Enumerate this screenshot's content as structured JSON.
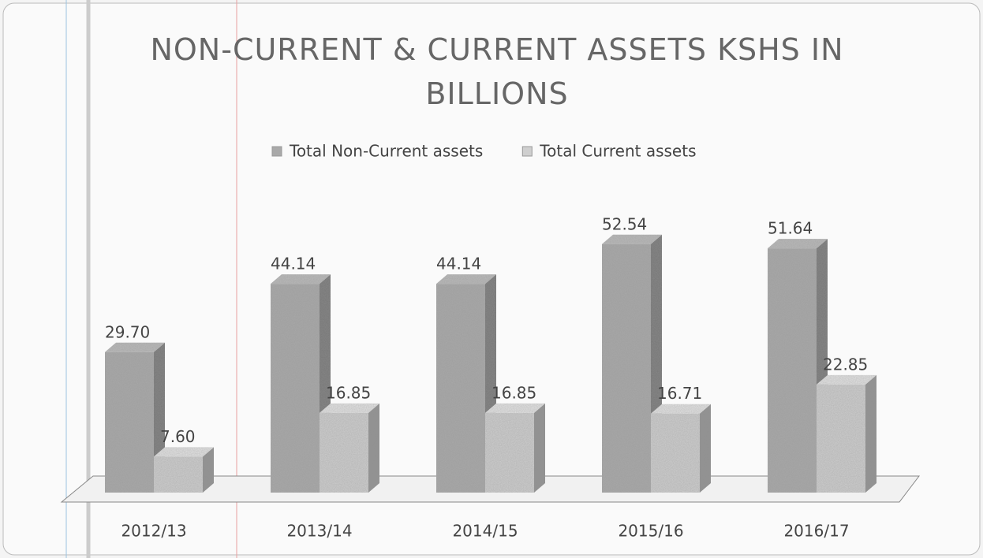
{
  "chart_data": {
    "type": "bar3d",
    "title": "NON-CURRENT & CURRENT ASSETS KSHS IN BILLIONS",
    "categories": [
      "2012/13",
      "2013/14",
      "2014/15",
      "2015/16",
      "2016/17"
    ],
    "series": [
      {
        "name": "Total Non-Current assets",
        "color": "#a9a9a9",
        "values": [
          29.7,
          44.14,
          44.14,
          52.54,
          51.64
        ],
        "value_labels": [
          "29.70",
          "44.14",
          "44.14",
          "52.54",
          "51.64"
        ]
      },
      {
        "name": "Total Current assets",
        "color": "#cfcfcf",
        "values": [
          7.6,
          16.85,
          16.85,
          16.71,
          22.85
        ],
        "value_labels": [
          "7.60",
          "16.85",
          "16.85",
          "16.71",
          "22.85"
        ]
      }
    ],
    "ylim": [
      0,
      60
    ],
    "legend": "top"
  }
}
